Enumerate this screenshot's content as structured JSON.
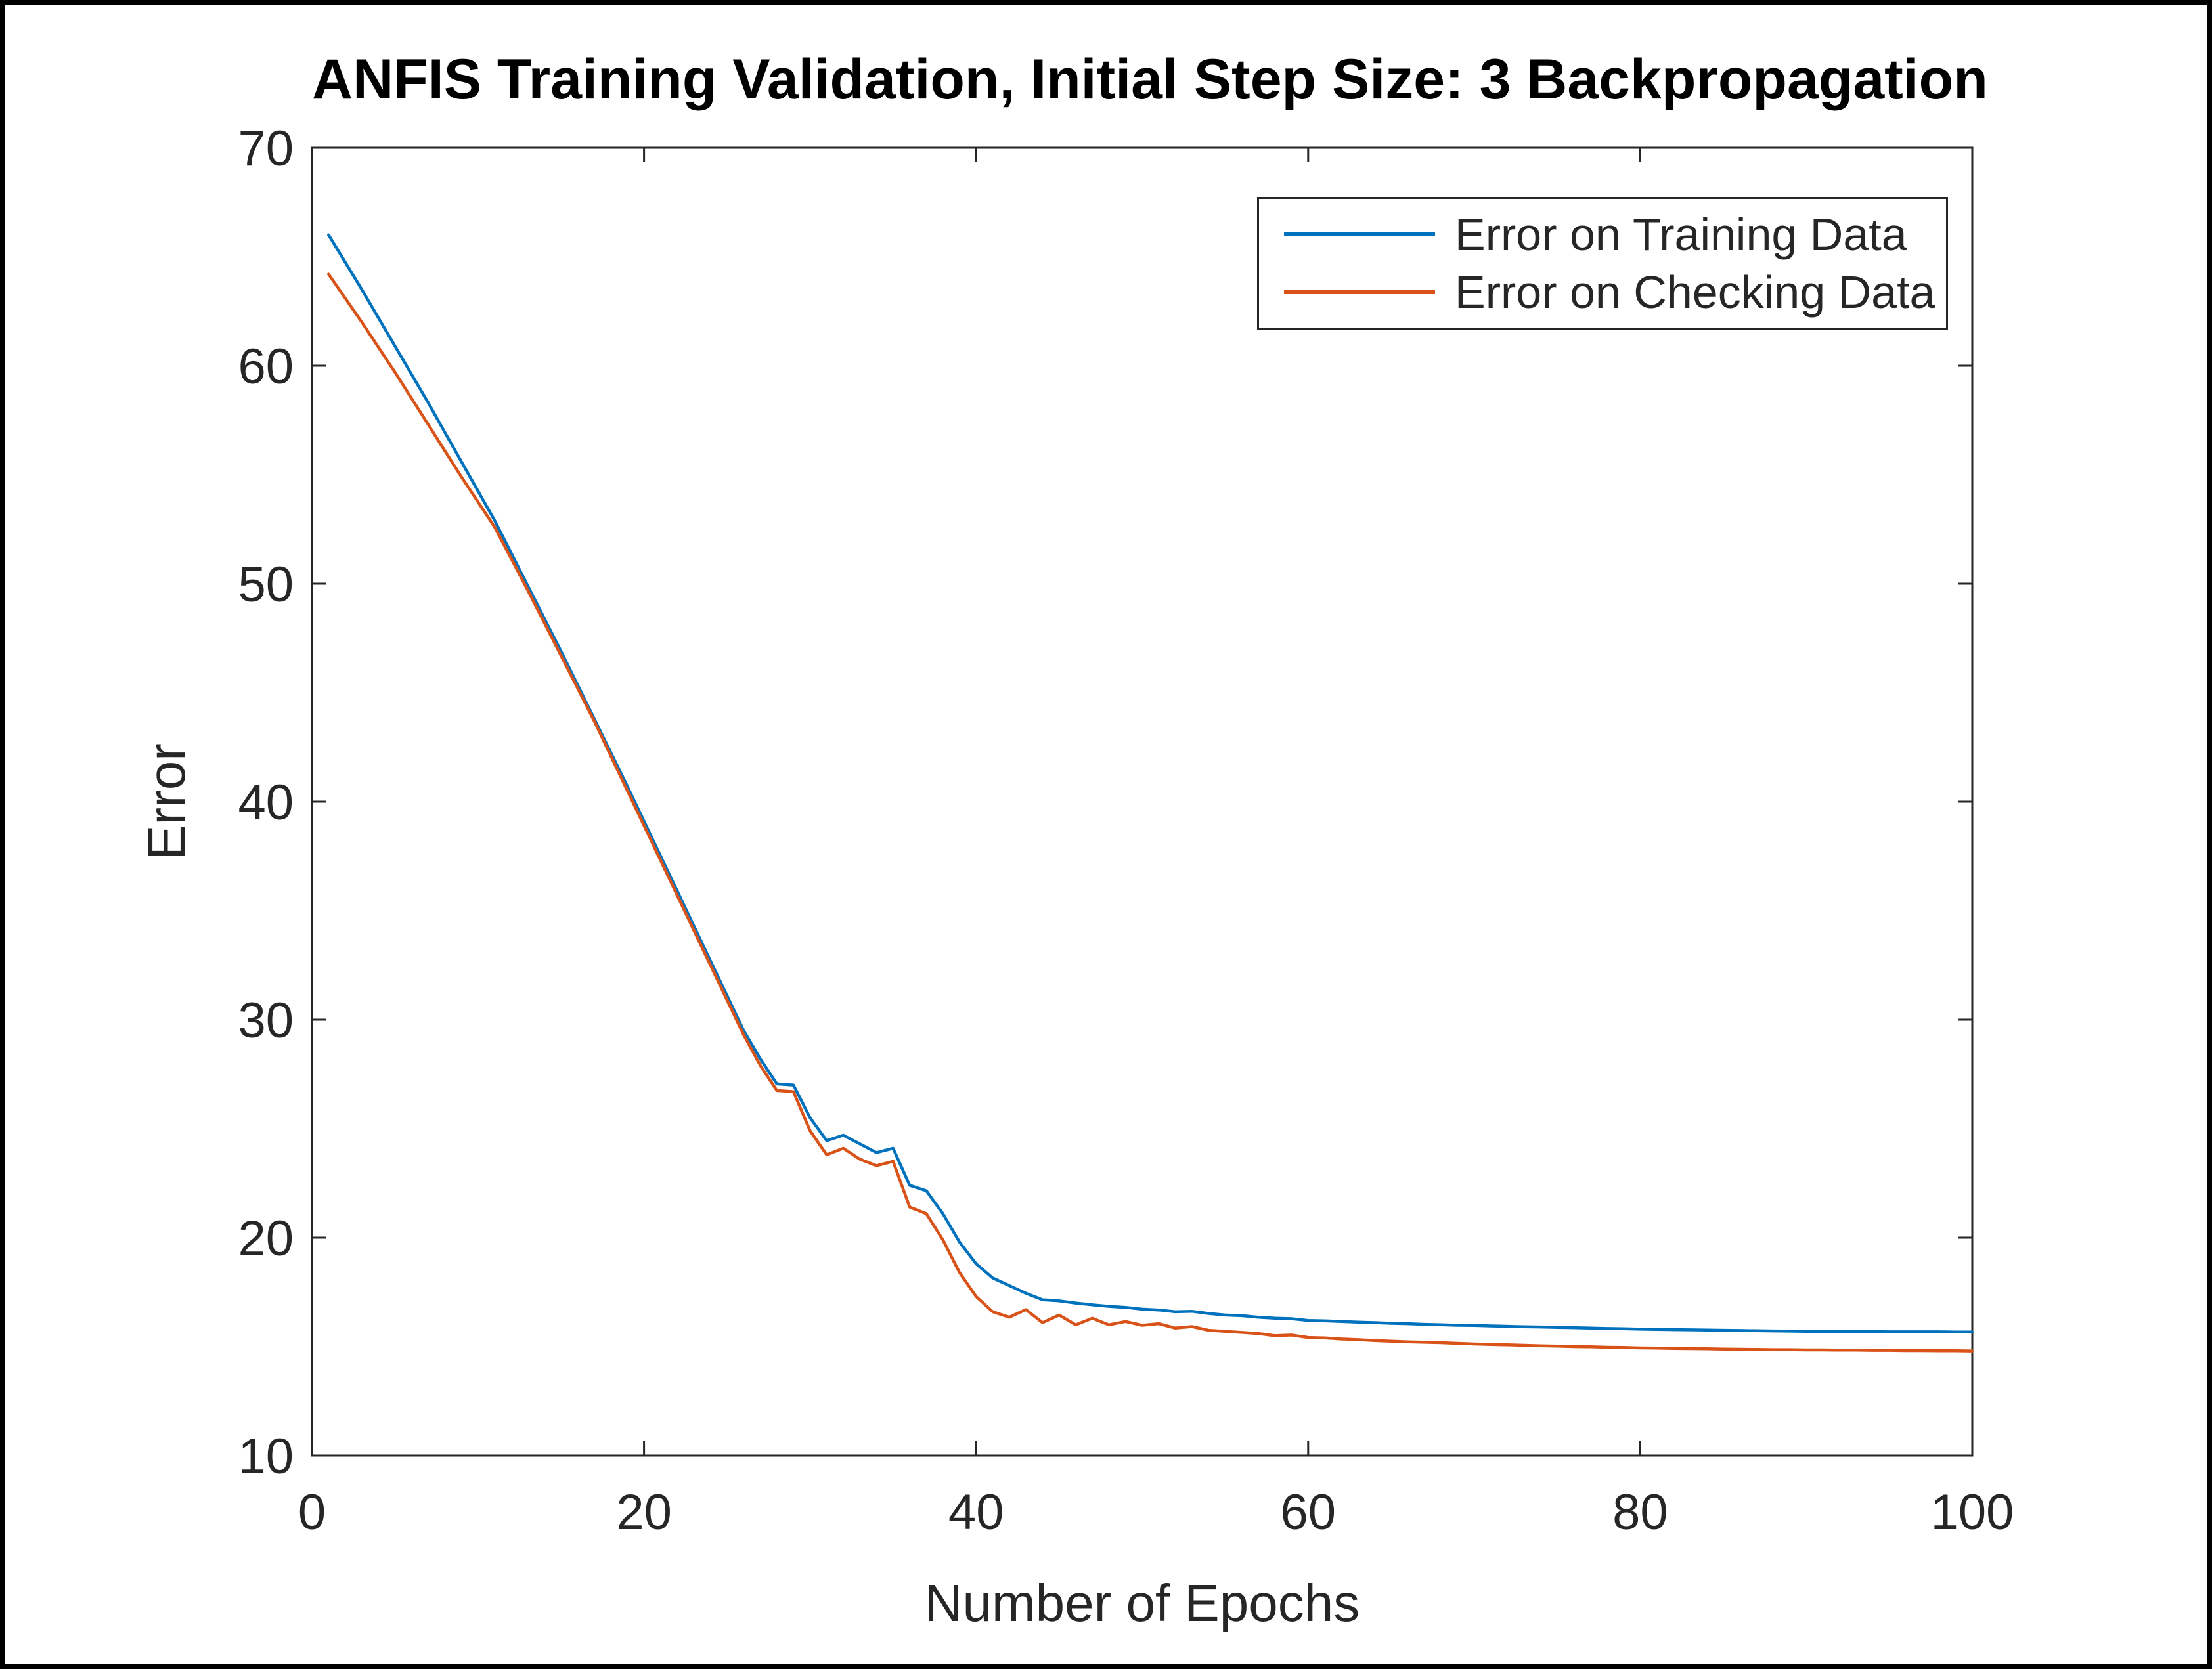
{
  "chart_data": {
    "type": "line",
    "title": "ANFIS Training Validation, Initial Step Size: 3 Backpropagation",
    "xlabel": "Number of Epochs",
    "ylabel": "Error",
    "xlim": [
      0,
      100
    ],
    "ylim": [
      10,
      70
    ],
    "x_ticks": [
      "0",
      "20",
      "40",
      "60",
      "80",
      "100"
    ],
    "x_tick_values": [
      0,
      20,
      40,
      60,
      80,
      100
    ],
    "y_ticks": [
      "10",
      "20",
      "30",
      "40",
      "50",
      "60",
      "70"
    ],
    "y_tick_values": [
      10,
      20,
      30,
      40,
      50,
      60,
      70
    ],
    "grid": false,
    "legend_position": "top-right",
    "axis_color": "#262626",
    "x": [
      1,
      2,
      3,
      4,
      5,
      6,
      7,
      8,
      9,
      10,
      11,
      12,
      13,
      14,
      15,
      16,
      17,
      18,
      19,
      20,
      21,
      22,
      23,
      24,
      25,
      26,
      27,
      28,
      29,
      30,
      31,
      32,
      33,
      34,
      35,
      36,
      37,
      38,
      39,
      40,
      41,
      42,
      43,
      44,
      45,
      46,
      47,
      48,
      49,
      50,
      51,
      52,
      53,
      54,
      55,
      56,
      57,
      58,
      59,
      60,
      61,
      62,
      63,
      64,
      65,
      66,
      67,
      68,
      69,
      70,
      71,
      72,
      73,
      74,
      75,
      76,
      77,
      78,
      79,
      80,
      81,
      82,
      83,
      84,
      85,
      86,
      87,
      88,
      89,
      90,
      91,
      92,
      93,
      94,
      95,
      96,
      97,
      98,
      99,
      100
    ],
    "series": [
      {
        "name": "Error on Training Data",
        "color": "#0072BD",
        "values": [
          66.0,
          64.75,
          63.5,
          62.2,
          60.9,
          59.6,
          58.3,
          56.95,
          55.6,
          54.25,
          52.9,
          51.4,
          49.9,
          48.4,
          46.9,
          45.35,
          43.8,
          42.25,
          40.7,
          39.1,
          37.5,
          35.9,
          34.3,
          32.7,
          31.1,
          29.5,
          28.2,
          27.05,
          27.0,
          25.5,
          24.45,
          24.7,
          24.3,
          23.9,
          24.1,
          22.4,
          22.15,
          21.1,
          19.8,
          18.8,
          18.15,
          17.8,
          17.45,
          17.15,
          17.1,
          17.0,
          16.92,
          16.85,
          16.8,
          16.72,
          16.68,
          16.6,
          16.62,
          16.52,
          16.45,
          16.42,
          16.35,
          16.3,
          16.28,
          16.2,
          16.18,
          16.15,
          16.12,
          16.1,
          16.07,
          16.05,
          16.02,
          16.0,
          15.98,
          15.97,
          15.95,
          15.93,
          15.91,
          15.9,
          15.88,
          15.87,
          15.85,
          15.83,
          15.82,
          15.8,
          15.79,
          15.78,
          15.77,
          15.76,
          15.75,
          15.74,
          15.73,
          15.72,
          15.71,
          15.7,
          15.7,
          15.7,
          15.69,
          15.69,
          15.68,
          15.68,
          15.68,
          15.68,
          15.67,
          15.67
        ]
      },
      {
        "name": "Error on Checking Data",
        "color": "#D95319",
        "values": [
          64.2,
          63.1,
          62.0,
          60.85,
          59.7,
          58.5,
          57.3,
          56.1,
          54.9,
          53.75,
          52.6,
          51.15,
          49.7,
          48.2,
          46.7,
          45.2,
          43.7,
          42.1,
          40.5,
          38.9,
          37.3,
          35.7,
          34.1,
          32.5,
          30.9,
          29.3,
          27.9,
          26.75,
          26.7,
          24.9,
          23.8,
          24.1,
          23.6,
          23.3,
          23.5,
          21.4,
          21.1,
          19.9,
          18.4,
          17.3,
          16.6,
          16.35,
          16.7,
          16.1,
          16.45,
          16.0,
          16.3,
          16.0,
          16.15,
          15.98,
          16.05,
          15.85,
          15.92,
          15.75,
          15.7,
          15.65,
          15.6,
          15.5,
          15.53,
          15.42,
          15.4,
          15.35,
          15.32,
          15.28,
          15.25,
          15.22,
          15.2,
          15.18,
          15.15,
          15.12,
          15.1,
          15.08,
          15.06,
          15.04,
          15.02,
          15.0,
          14.99,
          14.97,
          14.96,
          14.94,
          14.93,
          14.92,
          14.91,
          14.9,
          14.89,
          14.88,
          14.87,
          14.86,
          14.86,
          14.85,
          14.85,
          14.84,
          14.84,
          14.83,
          14.83,
          14.82,
          14.82,
          14.81,
          14.81,
          14.8
        ]
      }
    ]
  }
}
